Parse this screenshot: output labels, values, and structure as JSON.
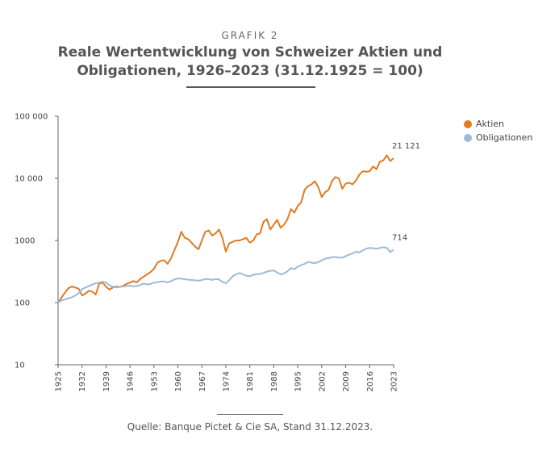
{
  "header": {
    "kicker": "GRAFIK 2",
    "title_line1": "Reale Wertentwicklung von Schweizer Aktien und",
    "title_line2": "Obligationen, 1926–2023 (31.12.1925 = 100)"
  },
  "footer": {
    "source": "Quelle: Banque Pictet & Cie SA, Stand 31.12.2023."
  },
  "chart_data": {
    "type": "line",
    "yscale": "log",
    "ylim": [
      10,
      100000
    ],
    "xlim": [
      1925,
      2023
    ],
    "y_ticks": [
      {
        "value": 100000,
        "label": "100 000"
      },
      {
        "value": 10000,
        "label": "10 000"
      },
      {
        "value": 1000,
        "label": "1000"
      },
      {
        "value": 100,
        "label": "100"
      },
      {
        "value": 10,
        "label": "10"
      }
    ],
    "x_ticks": [
      "1925",
      "1932",
      "1939",
      "1946",
      "1953",
      "1960",
      "1967",
      "1974",
      "1981",
      "1988",
      "1995",
      "2002",
      "2009",
      "2016",
      "2023"
    ],
    "legend_position": "top-right",
    "series": [
      {
        "name": "Aktien",
        "color": "#e07b22",
        "end_label": "21 121",
        "points": [
          [
            1925,
            100
          ],
          [
            1926,
            120
          ],
          [
            1927,
            145
          ],
          [
            1928,
            170
          ],
          [
            1929,
            182
          ],
          [
            1930,
            175
          ],
          [
            1931,
            168
          ],
          [
            1932,
            130
          ],
          [
            1933,
            140
          ],
          [
            1934,
            155
          ],
          [
            1935,
            150
          ],
          [
            1936,
            135
          ],
          [
            1937,
            200
          ],
          [
            1938,
            210
          ],
          [
            1939,
            180
          ],
          [
            1940,
            162
          ],
          [
            1941,
            175
          ],
          [
            1942,
            182
          ],
          [
            1943,
            178
          ],
          [
            1944,
            186
          ],
          [
            1945,
            200
          ],
          [
            1946,
            210
          ],
          [
            1947,
            222
          ],
          [
            1948,
            212
          ],
          [
            1949,
            240
          ],
          [
            1950,
            262
          ],
          [
            1951,
            285
          ],
          [
            1952,
            310
          ],
          [
            1953,
            350
          ],
          [
            1954,
            440
          ],
          [
            1955,
            470
          ],
          [
            1956,
            480
          ],
          [
            1957,
            420
          ],
          [
            1958,
            520
          ],
          [
            1959,
            700
          ],
          [
            1960,
            950
          ],
          [
            1961,
            1380
          ],
          [
            1962,
            1100
          ],
          [
            1963,
            1050
          ],
          [
            1964,
            920
          ],
          [
            1965,
            800
          ],
          [
            1966,
            720
          ],
          [
            1967,
            1000
          ],
          [
            1968,
            1380
          ],
          [
            1969,
            1450
          ],
          [
            1970,
            1200
          ],
          [
            1971,
            1300
          ],
          [
            1972,
            1500
          ],
          [
            1973,
            1100
          ],
          [
            1974,
            660
          ],
          [
            1975,
            900
          ],
          [
            1976,
            950
          ],
          [
            1977,
            1000
          ],
          [
            1978,
            1000
          ],
          [
            1979,
            1050
          ],
          [
            1980,
            1100
          ],
          [
            1981,
            920
          ],
          [
            1982,
            1000
          ],
          [
            1983,
            1250
          ],
          [
            1984,
            1300
          ],
          [
            1985,
            2000
          ],
          [
            1986,
            2200
          ],
          [
            1987,
            1500
          ],
          [
            1988,
            1800
          ],
          [
            1989,
            2150
          ],
          [
            1990,
            1600
          ],
          [
            1991,
            1800
          ],
          [
            1992,
            2200
          ],
          [
            1993,
            3200
          ],
          [
            1994,
            2800
          ],
          [
            1995,
            3600
          ],
          [
            1996,
            4100
          ],
          [
            1997,
            6500
          ],
          [
            1998,
            7500
          ],
          [
            1999,
            8000
          ],
          [
            2000,
            9000
          ],
          [
            2001,
            7200
          ],
          [
            2002,
            5000
          ],
          [
            2003,
            6000
          ],
          [
            2004,
            6500
          ],
          [
            2005,
            9000
          ],
          [
            2006,
            10500
          ],
          [
            2007,
            10000
          ],
          [
            2008,
            6800
          ],
          [
            2009,
            8200
          ],
          [
            2010,
            8500
          ],
          [
            2011,
            8000
          ],
          [
            2012,
            9200
          ],
          [
            2013,
            11500
          ],
          [
            2014,
            13000
          ],
          [
            2015,
            12800
          ],
          [
            2016,
            13000
          ],
          [
            2017,
            15500
          ],
          [
            2018,
            14000
          ],
          [
            2019,
            18500
          ],
          [
            2020,
            19500
          ],
          [
            2021,
            23500
          ],
          [
            2022,
            19000
          ],
          [
            2023,
            21121
          ]
        ]
      },
      {
        "name": "Obligationen",
        "color": "#9dbad9",
        "end_label": "714",
        "points": [
          [
            1925,
            100
          ],
          [
            1926,
            108
          ],
          [
            1927,
            113
          ],
          [
            1928,
            117
          ],
          [
            1929,
            122
          ],
          [
            1930,
            130
          ],
          [
            1931,
            142
          ],
          [
            1932,
            165
          ],
          [
            1933,
            175
          ],
          [
            1934,
            185
          ],
          [
            1935,
            195
          ],
          [
            1936,
            205
          ],
          [
            1937,
            210
          ],
          [
            1938,
            218
          ],
          [
            1939,
            210
          ],
          [
            1940,
            190
          ],
          [
            1941,
            180
          ],
          [
            1942,
            176
          ],
          [
            1943,
            178
          ],
          [
            1944,
            182
          ],
          [
            1945,
            185
          ],
          [
            1946,
            188
          ],
          [
            1947,
            183
          ],
          [
            1948,
            185
          ],
          [
            1949,
            192
          ],
          [
            1950,
            202
          ],
          [
            1951,
            196
          ],
          [
            1952,
            200
          ],
          [
            1953,
            210
          ],
          [
            1954,
            214
          ],
          [
            1955,
            218
          ],
          [
            1956,
            218
          ],
          [
            1957,
            212
          ],
          [
            1958,
            222
          ],
          [
            1959,
            236
          ],
          [
            1960,
            245
          ],
          [
            1961,
            242
          ],
          [
            1962,
            238
          ],
          [
            1963,
            234
          ],
          [
            1964,
            232
          ],
          [
            1965,
            228
          ],
          [
            1966,
            226
          ],
          [
            1967,
            230
          ],
          [
            1968,
            240
          ],
          [
            1969,
            238
          ],
          [
            1970,
            232
          ],
          [
            1971,
            240
          ],
          [
            1972,
            236
          ],
          [
            1973,
            215
          ],
          [
            1974,
            205
          ],
          [
            1975,
            230
          ],
          [
            1976,
            265
          ],
          [
            1977,
            285
          ],
          [
            1978,
            300
          ],
          [
            1979,
            285
          ],
          [
            1980,
            270
          ],
          [
            1981,
            265
          ],
          [
            1982,
            280
          ],
          [
            1983,
            286
          ],
          [
            1984,
            290
          ],
          [
            1985,
            300
          ],
          [
            1986,
            315
          ],
          [
            1987,
            325
          ],
          [
            1988,
            330
          ],
          [
            1989,
            305
          ],
          [
            1990,
            285
          ],
          [
            1991,
            295
          ],
          [
            1992,
            320
          ],
          [
            1993,
            360
          ],
          [
            1994,
            345
          ],
          [
            1995,
            380
          ],
          [
            1996,
            400
          ],
          [
            1997,
            420
          ],
          [
            1998,
            450
          ],
          [
            1999,
            440
          ],
          [
            2000,
            430
          ],
          [
            2001,
            450
          ],
          [
            2002,
            480
          ],
          [
            2003,
            510
          ],
          [
            2004,
            520
          ],
          [
            2005,
            540
          ],
          [
            2006,
            540
          ],
          [
            2007,
            530
          ],
          [
            2008,
            530
          ],
          [
            2009,
            560
          ],
          [
            2010,
            590
          ],
          [
            2011,
            620
          ],
          [
            2012,
            660
          ],
          [
            2013,
            640
          ],
          [
            2014,
            690
          ],
          [
            2015,
            740
          ],
          [
            2016,
            760
          ],
          [
            2017,
            750
          ],
          [
            2018,
            740
          ],
          [
            2019,
            760
          ],
          [
            2020,
            780
          ],
          [
            2021,
            760
          ],
          [
            2022,
            650
          ],
          [
            2023,
            714
          ]
        ]
      }
    ]
  }
}
